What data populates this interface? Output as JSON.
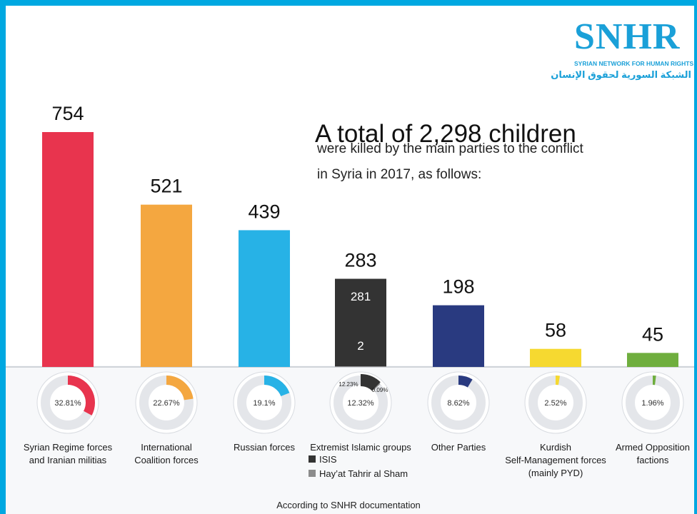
{
  "brand": {
    "logo_mark": "SNHR",
    "name_en": "SYRIAN NETWORK FOR HUMAN RIGHTS",
    "name_ar": "الشبكة السورية لحقوق الإنسان",
    "color": "#1aa0d8"
  },
  "headline": "A total of 2,298 children",
  "subtitle_line1": "were killed by the main parties to the conflict",
  "subtitle_line2": "in Syria in 2017, as follows:",
  "footer": "According to SNHR documentation",
  "chart_data": {
    "type": "bar",
    "ylim": [
      0,
      754
    ],
    "categories": [
      {
        "label_lines": [
          "Syrian Regime forces",
          "and Iranian militias"
        ],
        "value": 754,
        "display": "754",
        "color": "#e8344e",
        "percent": 32.81,
        "percent_label": "32.81%"
      },
      {
        "label_lines": [
          "International",
          "Coalition forces"
        ],
        "value": 521,
        "display": "521",
        "color": "#f4a740",
        "percent": 22.67,
        "percent_label": "22.67%"
      },
      {
        "label_lines": [
          "Russian forces"
        ],
        "value": 439,
        "display": "439",
        "color": "#27b2e6",
        "percent": 19.1,
        "percent_label": "19.1%"
      },
      {
        "label_lines": [
          "Extremist Islamic groups"
        ],
        "value": 283,
        "display": "283",
        "color": "#333333",
        "percent": 12.32,
        "percent_label": "12.32%",
        "segments": [
          {
            "name": "Hay’at Tahrir al Sham",
            "value": 2,
            "display": "2",
            "color": "#8c8c8c",
            "percent": 0.09,
            "percent_label": "0.09%"
          },
          {
            "name": "ISIS",
            "value": 281,
            "display": "281",
            "color": "#333333",
            "percent": 12.23,
            "percent_label": "12.23%"
          }
        ]
      },
      {
        "label_lines": [
          "Other Parties"
        ],
        "value": 198,
        "display": "198",
        "color": "#293a80",
        "percent": 8.62,
        "percent_label": "8.62%"
      },
      {
        "label_lines": [
          "Kurdish",
          "Self-Management forces",
          "(mainly PYD)"
        ],
        "value": 58,
        "display": "58",
        "color": "#f6d930",
        "percent": 2.52,
        "percent_label": "2.52%"
      },
      {
        "label_lines": [
          "Armed Opposition",
          "factions"
        ],
        "value": 45,
        "display": "45",
        "color": "#6fae3e",
        "percent": 1.96,
        "percent_label": "1.96%"
      }
    ],
    "legend": [
      {
        "name": "ISIS",
        "color": "#333333"
      },
      {
        "name": "Hay’at Tahrir al Sham",
        "color": "#8c8c8c"
      }
    ],
    "ring_track_color": "#e4e6ea"
  }
}
